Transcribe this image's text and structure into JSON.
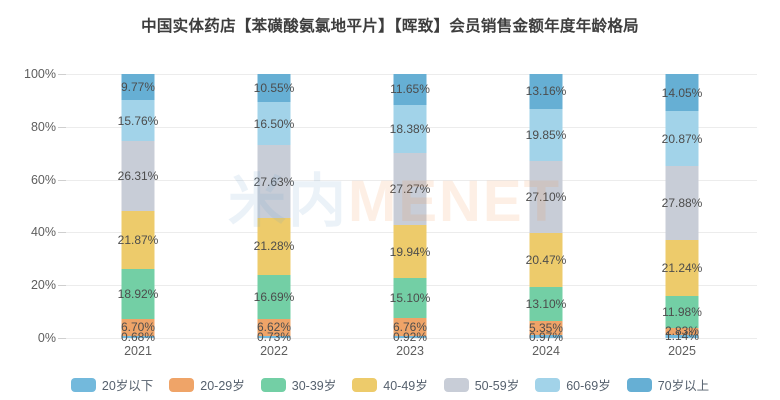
{
  "title": "中国实体药店【苯磺酸氨氯地平片】【晖致】会员销售金额年度年龄格局",
  "watermark": {
    "cn": "米内",
    "en": "MENET"
  },
  "chart_data": {
    "type": "bar",
    "stacked": true,
    "percent_stacked": true,
    "title": "中国实体药店【苯磺酸氨氯地平片】【晖致】会员销售金额年度年龄格局",
    "categories": [
      "2021",
      "2022",
      "2023",
      "2024",
      "2025"
    ],
    "series": [
      {
        "name": "20岁以下",
        "color": "#73B9DC",
        "values": [
          0.68,
          0.73,
          0.92,
          0.97,
          1.14
        ]
      },
      {
        "name": "20-29岁",
        "color": "#EFA468",
        "values": [
          6.7,
          6.62,
          6.76,
          5.35,
          2.83
        ]
      },
      {
        "name": "30-39岁",
        "color": "#73CFA5",
        "values": [
          18.92,
          16.69,
          15.1,
          13.1,
          11.98
        ]
      },
      {
        "name": "40-49岁",
        "color": "#EDCB6B",
        "values": [
          21.87,
          21.28,
          19.94,
          20.47,
          21.24
        ]
      },
      {
        "name": "50-59岁",
        "color": "#C8CDD7",
        "values": [
          26.31,
          27.63,
          27.27,
          27.1,
          27.88
        ]
      },
      {
        "name": "60-69岁",
        "color": "#A2D3E9",
        "values": [
          15.76,
          16.5,
          18.38,
          19.85,
          20.87
        ]
      },
      {
        "name": "70岁以上",
        "color": "#66AFD4",
        "values": [
          9.77,
          10.55,
          11.65,
          13.16,
          14.05
        ]
      }
    ],
    "y_ticks": [
      "0%",
      "20%",
      "40%",
      "60%",
      "80%",
      "100%"
    ],
    "ylim": [
      0,
      100
    ],
    "value_suffix": "%",
    "grid": true,
    "legend_position": "bottom"
  }
}
